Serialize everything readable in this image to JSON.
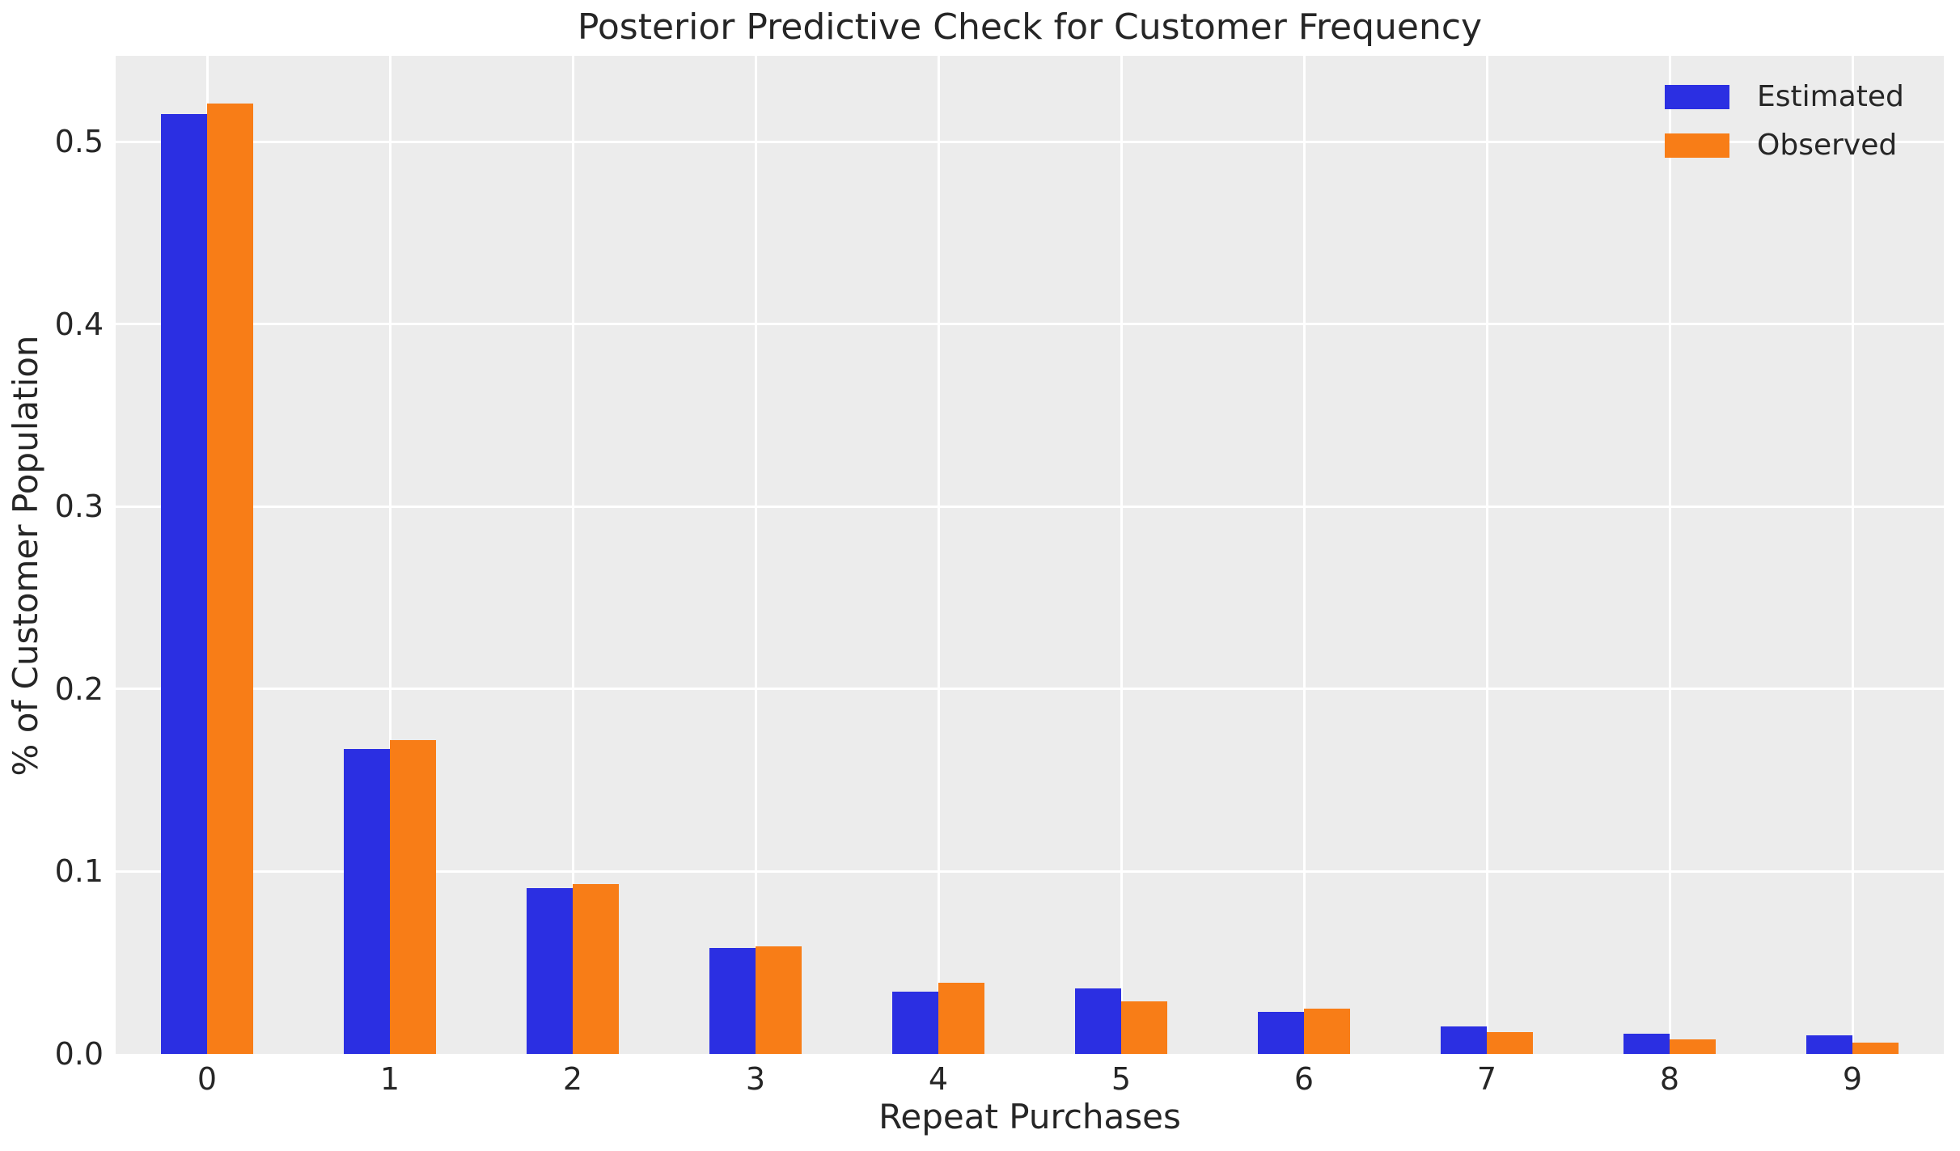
{
  "chart_data": {
    "type": "bar",
    "title": "Posterior Predictive Check for Customer Frequency",
    "xlabel": "Repeat Purchases",
    "ylabel": "% of Customer Population",
    "categories": [
      "0",
      "1",
      "2",
      "3",
      "4",
      "5",
      "6",
      "7",
      "8",
      "9"
    ],
    "series": [
      {
        "name": "Estimated",
        "color": "#2b2fe2",
        "values": [
          0.515,
          0.167,
          0.091,
          0.058,
          0.034,
          0.036,
          0.023,
          0.015,
          0.011,
          0.01
        ]
      },
      {
        "name": "Observed",
        "color": "#f87d17",
        "values": [
          0.521,
          0.172,
          0.093,
          0.059,
          0.039,
          0.029,
          0.025,
          0.012,
          0.008,
          0.006
        ]
      }
    ],
    "ylim": [
      0,
      0.547
    ],
    "yticks": [
      0.0,
      0.1,
      0.2,
      0.3,
      0.4,
      0.5
    ],
    "ytick_labels": [
      "0.0",
      "0.1",
      "0.2",
      "0.3",
      "0.4",
      "0.5"
    ],
    "grid": true,
    "legend_position": "upper right",
    "colors": {
      "plot_background": "#ececec",
      "figure_background": "#ffffff",
      "grid": "#ffffff",
      "text": "#262626"
    }
  }
}
